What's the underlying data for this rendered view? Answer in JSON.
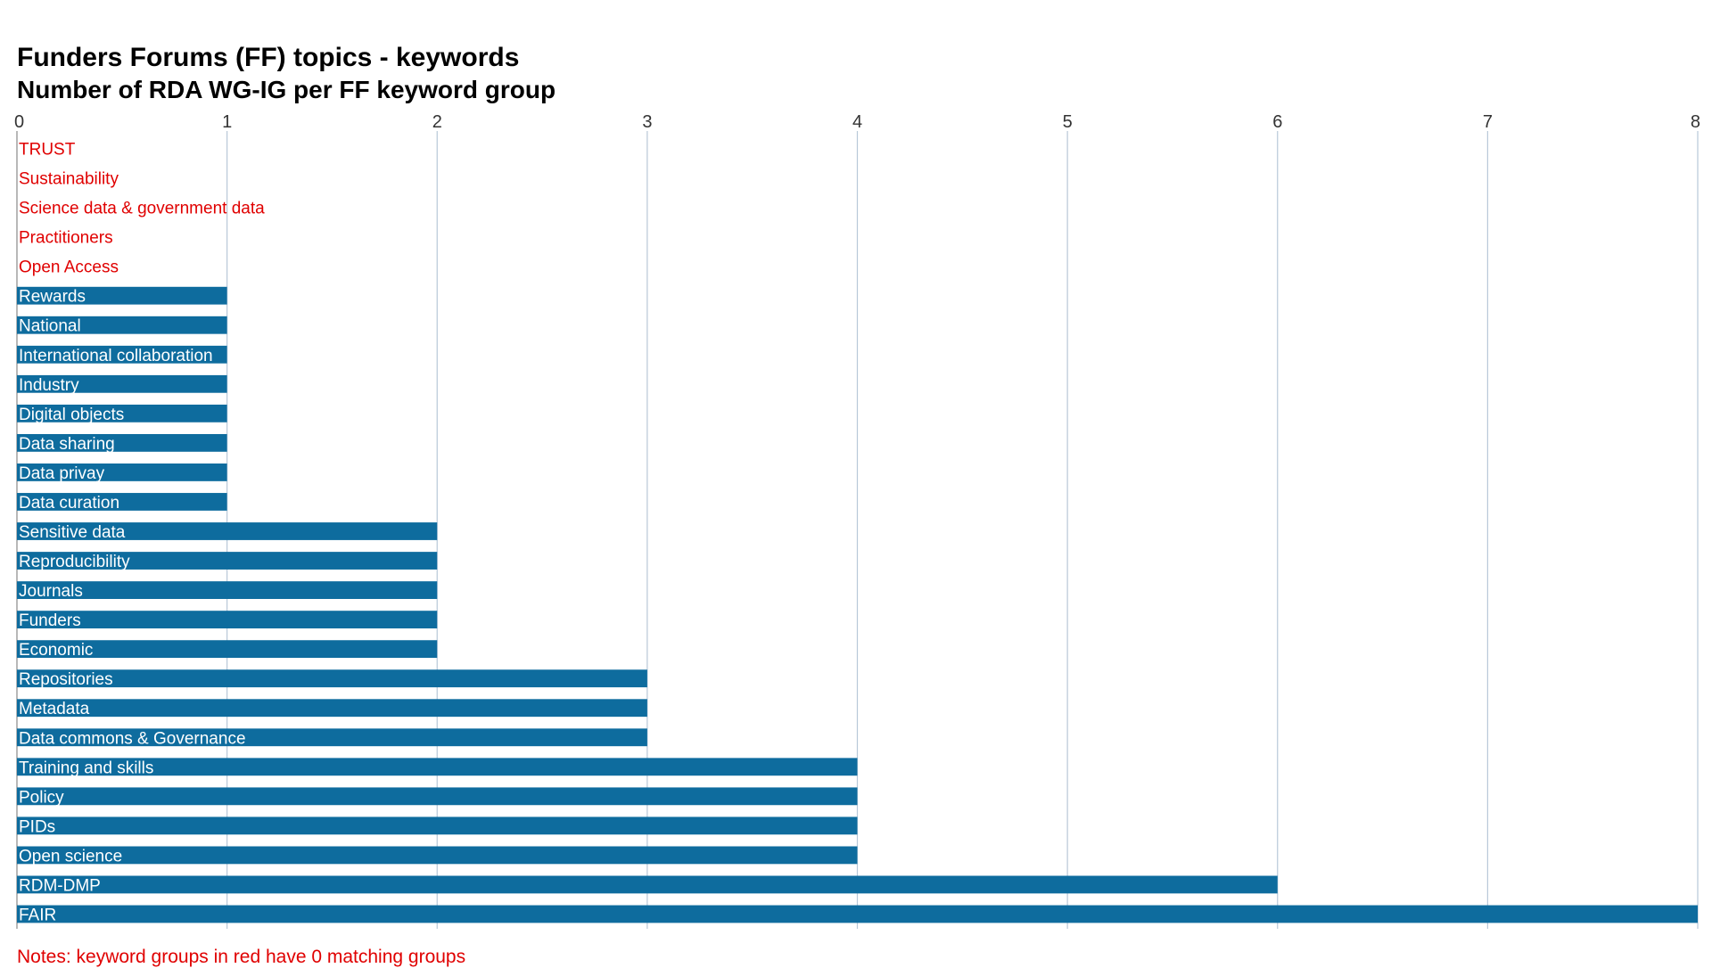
{
  "chart_data": {
    "type": "bar",
    "orientation": "horizontal",
    "title": "Funders Forums (FF) topics - keywords",
    "subtitle": "Number of RDA WG-IG per FF keyword group",
    "xlim": [
      0,
      8
    ],
    "x_ticks": [
      "0",
      "1",
      "2",
      "3",
      "4",
      "5",
      "6",
      "7",
      "8"
    ],
    "x_axis_position": "top",
    "grid": true,
    "legend": "none",
    "categories": [
      "TRUST",
      "Sustainability",
      "Science data & government data",
      "Practitioners",
      "Open Access",
      "Rewards",
      "National",
      "International collaboration",
      "Industry",
      "Digital objects",
      "Data sharing",
      "Data privay",
      "Data curation",
      "Sensitive data",
      "Reproducibility",
      "Journals",
      "Funders",
      "Economic",
      "Repositories",
      "Metadata",
      "Data commons & Governance",
      "Training and skills",
      "Policy",
      "PIDs",
      "Open science",
      "RDM-DMP",
      "FAIR"
    ],
    "values": [
      0,
      0,
      0,
      0,
      0,
      1,
      1,
      1,
      1,
      1,
      1,
      1,
      1,
      2,
      2,
      2,
      2,
      2,
      3,
      3,
      3,
      4,
      4,
      4,
      4,
      6,
      8
    ],
    "note": "Notes: keyword groups in red have 0 matching groups"
  },
  "colors": {
    "bar": "#0e6c9e",
    "zero_label": "#e00000",
    "bar_label": "#ffffff",
    "grid": "#b8c8d8",
    "note": "#e00000"
  }
}
